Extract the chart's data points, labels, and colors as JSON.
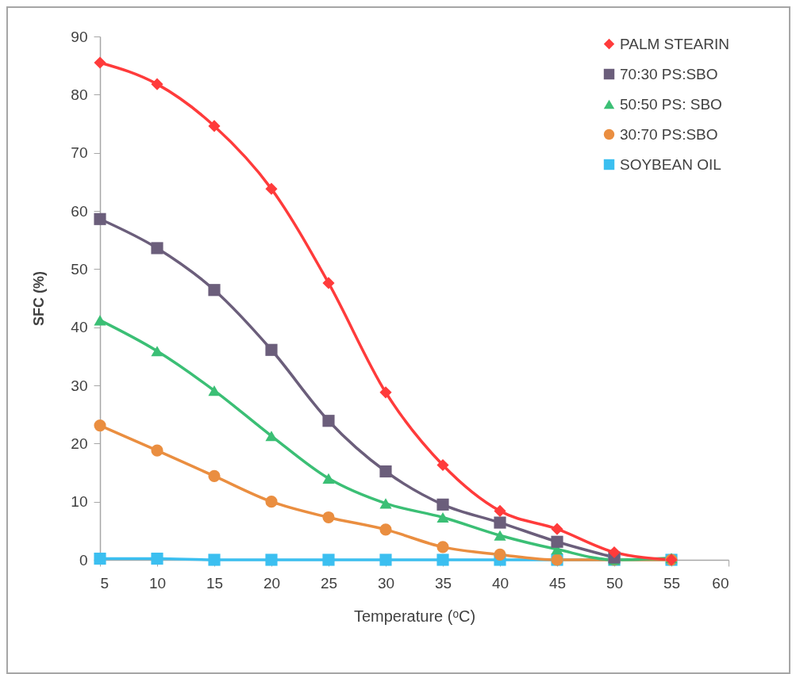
{
  "chart_data": {
    "type": "line",
    "xlabel": "Temperature (ᵒC)",
    "ylabel": "SFC (%)",
    "x": [
      5,
      10,
      15,
      20,
      25,
      30,
      35,
      40,
      45,
      50,
      55
    ],
    "xlim": [
      5,
      60
    ],
    "xticks": [
      5,
      10,
      15,
      20,
      25,
      30,
      35,
      40,
      45,
      50,
      55,
      60
    ],
    "ylim": [
      0,
      90
    ],
    "yticks": [
      0,
      10,
      20,
      30,
      40,
      50,
      60,
      70,
      80,
      90
    ],
    "grid": false,
    "legend": "right",
    "line_style": "solid",
    "series": [
      {
        "name": "PALM STEARIN",
        "color": "#ff3b3b",
        "marker": "diamond",
        "values": [
          85.5,
          81.8,
          74.6,
          63.8,
          47.6,
          28.8,
          16.3,
          8.4,
          5.3,
          1.3,
          0
        ]
      },
      {
        "name": " 70:30 PS:SBO",
        "color": "#6b5e7b",
        "marker": "square",
        "values": [
          58.6,
          53.6,
          46.4,
          36.1,
          23.9,
          15.2,
          9.5,
          6.4,
          3.1,
          0.4,
          null
        ]
      },
      {
        "name": " 50:50 PS: SBO",
        "color": "#3bbf75",
        "marker": "triangle",
        "values": [
          41.2,
          35.9,
          29.1,
          21.3,
          14.0,
          9.7,
          7.3,
          4.2,
          1.8,
          0,
          0.3
        ]
      },
      {
        "name": " 30:70 PS:SBO",
        "color": "#ea8e40",
        "marker": "circle",
        "values": [
          23.1,
          18.8,
          14.4,
          10.0,
          7.3,
          5.2,
          2.2,
          0.9,
          0,
          0,
          0
        ]
      },
      {
        "name": "SOYBEAN OIL",
        "color": "#3bbff0",
        "marker": "square",
        "values": [
          0.2,
          0.2,
          0,
          0,
          0,
          0,
          0,
          0,
          0,
          0,
          0
        ]
      }
    ]
  }
}
